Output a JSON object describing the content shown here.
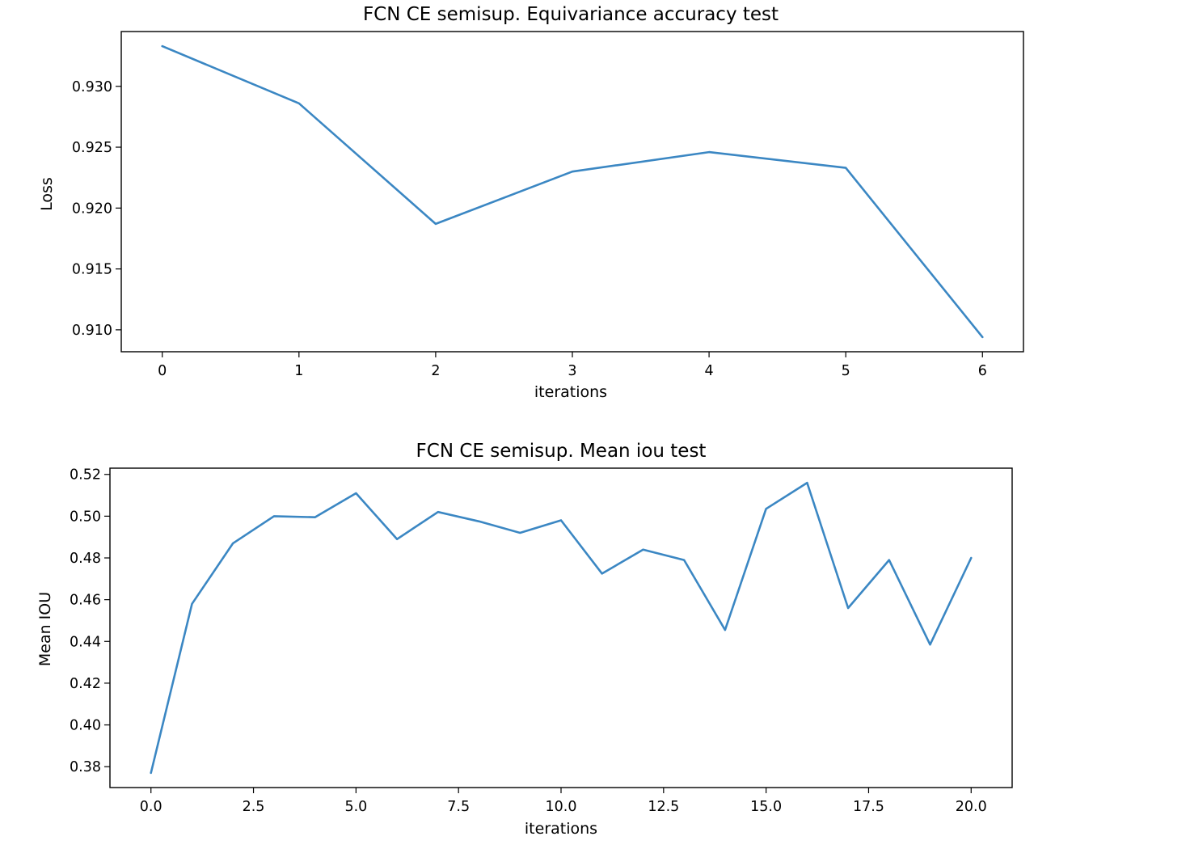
{
  "colors": {
    "series": "#3b87c3"
  },
  "chart_data": [
    {
      "type": "line",
      "title": "FCN CE semisup. Equivariance accuracy test",
      "xlabel": "iterations",
      "ylabel": "Loss",
      "x": [
        0,
        1,
        2,
        3,
        4,
        5,
        6
      ],
      "series": [
        {
          "values": [
            0.9333,
            0.9286,
            0.9187,
            0.923,
            0.9246,
            0.9233,
            0.9094
          ]
        }
      ],
      "xlim": [
        -0.3,
        6.3
      ],
      "ylim": [
        0.9082,
        0.9345
      ],
      "xticks": [
        0,
        1,
        2,
        3,
        4,
        5,
        6
      ],
      "xtick_labels": [
        "0",
        "1",
        "2",
        "3",
        "4",
        "5",
        "6"
      ],
      "yticks": [
        0.91,
        0.915,
        0.92,
        0.925,
        0.93
      ],
      "ytick_labels": [
        "0.910",
        "0.915",
        "0.920",
        "0.925",
        "0.930"
      ],
      "grid": false
    },
    {
      "type": "line",
      "title": "FCN CE  semisup. Mean iou test",
      "xlabel": "iterations",
      "ylabel": "Mean IOU",
      "x": [
        0,
        1,
        2,
        3,
        4,
        5,
        6,
        7,
        8,
        9,
        10,
        11,
        12,
        13,
        14,
        15,
        16,
        17,
        18,
        19,
        20
      ],
      "series": [
        {
          "values": [
            0.377,
            0.458,
            0.487,
            0.5,
            0.4995,
            0.511,
            0.489,
            0.502,
            0.4975,
            0.492,
            0.498,
            0.4725,
            0.484,
            0.479,
            0.4455,
            0.5035,
            0.516,
            0.456,
            0.479,
            0.4385,
            0.48
          ]
        }
      ],
      "xlim": [
        -1.0,
        21.0
      ],
      "ylim": [
        0.37,
        0.523
      ],
      "xticks": [
        0,
        2.5,
        5,
        7.5,
        10,
        12.5,
        15,
        17.5,
        20
      ],
      "xtick_labels": [
        "0.0",
        "2.5",
        "5.0",
        "7.5",
        "10.0",
        "12.5",
        "15.0",
        "17.5",
        "20.0"
      ],
      "yticks": [
        0.38,
        0.4,
        0.42,
        0.44,
        0.46,
        0.48,
        0.5,
        0.52
      ],
      "ytick_labels": [
        "0.38",
        "0.40",
        "0.42",
        "0.44",
        "0.46",
        "0.48",
        "0.50",
        "0.52"
      ],
      "grid": false
    }
  ]
}
